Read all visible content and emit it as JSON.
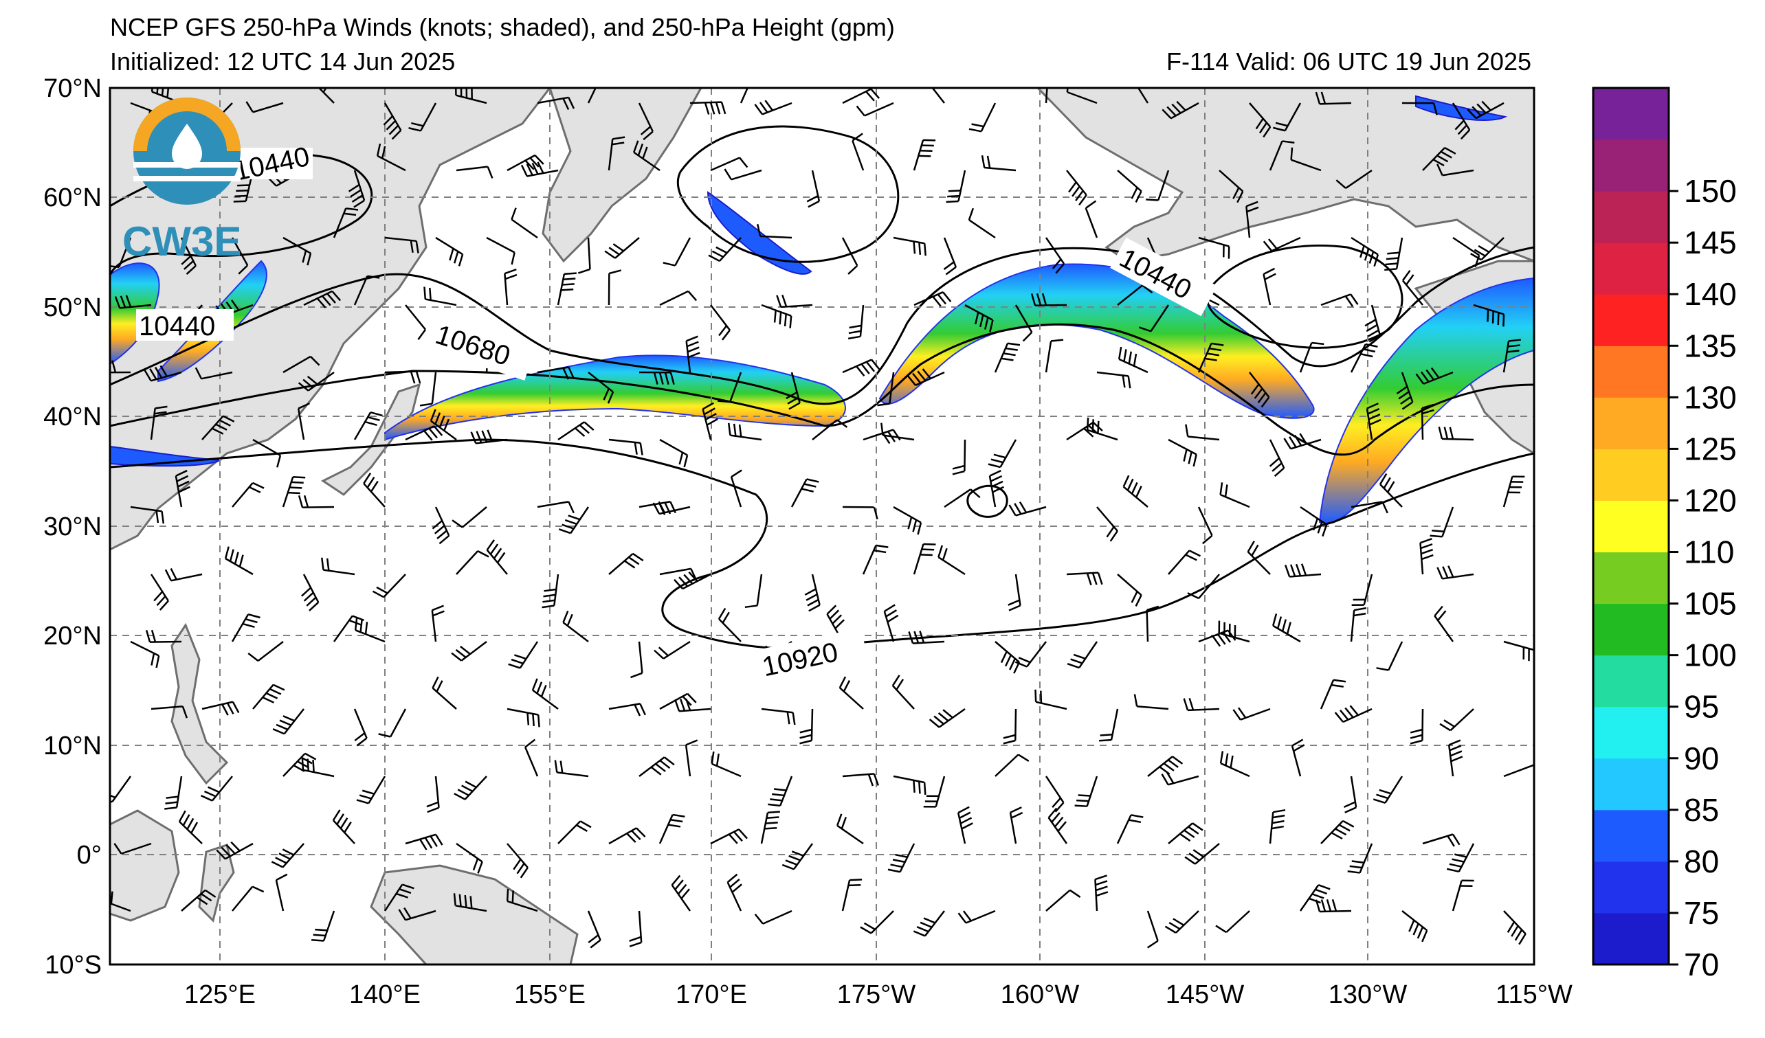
{
  "header": {
    "title": "NCEP GFS 250-hPa Winds (knots; shaded), and 250-hPa Height (gpm)",
    "initialized": "Initialized: 12 UTC 14 Jun 2025",
    "valid": "F-114  Valid: 06 UTC 19 Jun 2025"
  },
  "logo": {
    "text": "CW3E"
  },
  "axes": {
    "lat_labels": [
      "70°N",
      "60°N",
      "50°N",
      "40°N",
      "30°N",
      "20°N",
      "10°N",
      "0°",
      "10°S"
    ],
    "lon_labels": [
      "125°E",
      "140°E",
      "155°E",
      "170°E",
      "175°W",
      "160°W",
      "145°W",
      "130°W",
      "115°W"
    ]
  },
  "contour_labels": [
    "10440",
    "10440",
    "10680",
    "10440",
    "10920"
  ],
  "colorbar": {
    "labels": [
      "70",
      "75",
      "80",
      "85",
      "90",
      "95",
      "100",
      "105",
      "110",
      "120",
      "125",
      "130",
      "135",
      "140",
      "145",
      "150"
    ],
    "colors": [
      "#1c1ccc",
      "#2233ee",
      "#1e5bff",
      "#22c8ff",
      "#22f0f0",
      "#22dca0",
      "#22bb22",
      "#77cc22",
      "#ffff22",
      "#ffcc22",
      "#ffaa22",
      "#ff7722",
      "#ff2222",
      "#dd2244",
      "#bb2255",
      "#992277",
      "#772299"
    ]
  },
  "colors": {
    "land": "#e2e2e2",
    "coast": "#6e6e6e",
    "contour": "#000000",
    "grid": "#808080"
  }
}
